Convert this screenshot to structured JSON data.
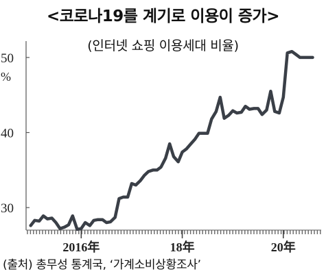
{
  "chart_data": {
    "type": "line",
    "title": "<코로나19를 계기로 이용이 증가>",
    "subtitle": "(인터넷 쇼핑 이용세대 비율)",
    "y_unit": "%",
    "yticks": [
      30,
      40,
      50
    ],
    "ytick_labels": [
      "30",
      "40",
      "50"
    ],
    "ylim": [
      27,
      52
    ],
    "xticks": [
      {
        "x": 2016.0,
        "label": "2016年"
      },
      {
        "x": 2018.0,
        "label": "18年"
      },
      {
        "x": 2020.0,
        "label": "20年"
      }
    ],
    "xlim": [
      2014.8,
      2020.75
    ],
    "grid": false,
    "legend": "none",
    "line_color": "#3a3f47",
    "series": [
      {
        "x": [
          2015.0,
          2015.08,
          2015.17,
          2015.25,
          2015.33,
          2015.42,
          2015.5,
          2015.58,
          2015.67,
          2015.75,
          2015.83,
          2015.92,
          2016.0,
          2016.08,
          2016.17,
          2016.25,
          2016.33,
          2016.42,
          2016.5,
          2016.58,
          2016.67,
          2016.75,
          2016.83,
          2016.92,
          2017.0,
          2017.08,
          2017.17,
          2017.25,
          2017.33,
          2017.42,
          2017.5,
          2017.58,
          2017.67,
          2017.75,
          2017.83,
          2017.92,
          2018.0,
          2018.08,
          2018.17,
          2018.25,
          2018.33,
          2018.42,
          2018.5,
          2018.58,
          2018.67,
          2018.75,
          2018.83,
          2018.92,
          2019.0,
          2019.08,
          2019.17,
          2019.25,
          2019.33,
          2019.42,
          2019.5,
          2019.58,
          2019.67,
          2019.75,
          2019.83,
          2019.92,
          2020.0,
          2020.08,
          2020.17,
          2020.25,
          2020.33,
          2020.42,
          2020.5,
          2020.58
        ],
        "values": [
          27.6,
          28.3,
          28.2,
          28.9,
          28.5,
          28.6,
          28.0,
          27.2,
          27.4,
          27.7,
          28.9,
          27.1,
          27.2,
          28.0,
          27.6,
          28.3,
          28.4,
          28.4,
          28.0,
          28.1,
          28.7,
          31.2,
          31.4,
          31.4,
          33.2,
          33.0,
          33.6,
          34.3,
          34.8,
          35.0,
          35.0,
          35.4,
          36.6,
          38.5,
          36.8,
          36.1,
          37.4,
          37.8,
          38.5,
          39.1,
          39.9,
          39.9,
          39.9,
          41.8,
          42.8,
          44.7,
          41.9,
          42.3,
          42.9,
          42.6,
          42.7,
          43.5,
          43.1,
          43.2,
          43.2,
          42.4,
          43.0,
          45.5,
          42.8,
          42.6,
          44.7,
          50.6,
          50.8,
          50.4,
          50.0,
          50.0,
          50.0,
          50.0
        ]
      }
    ]
  },
  "source": "(출처) 총무성 통계국, ‘가계소비상황조사’"
}
